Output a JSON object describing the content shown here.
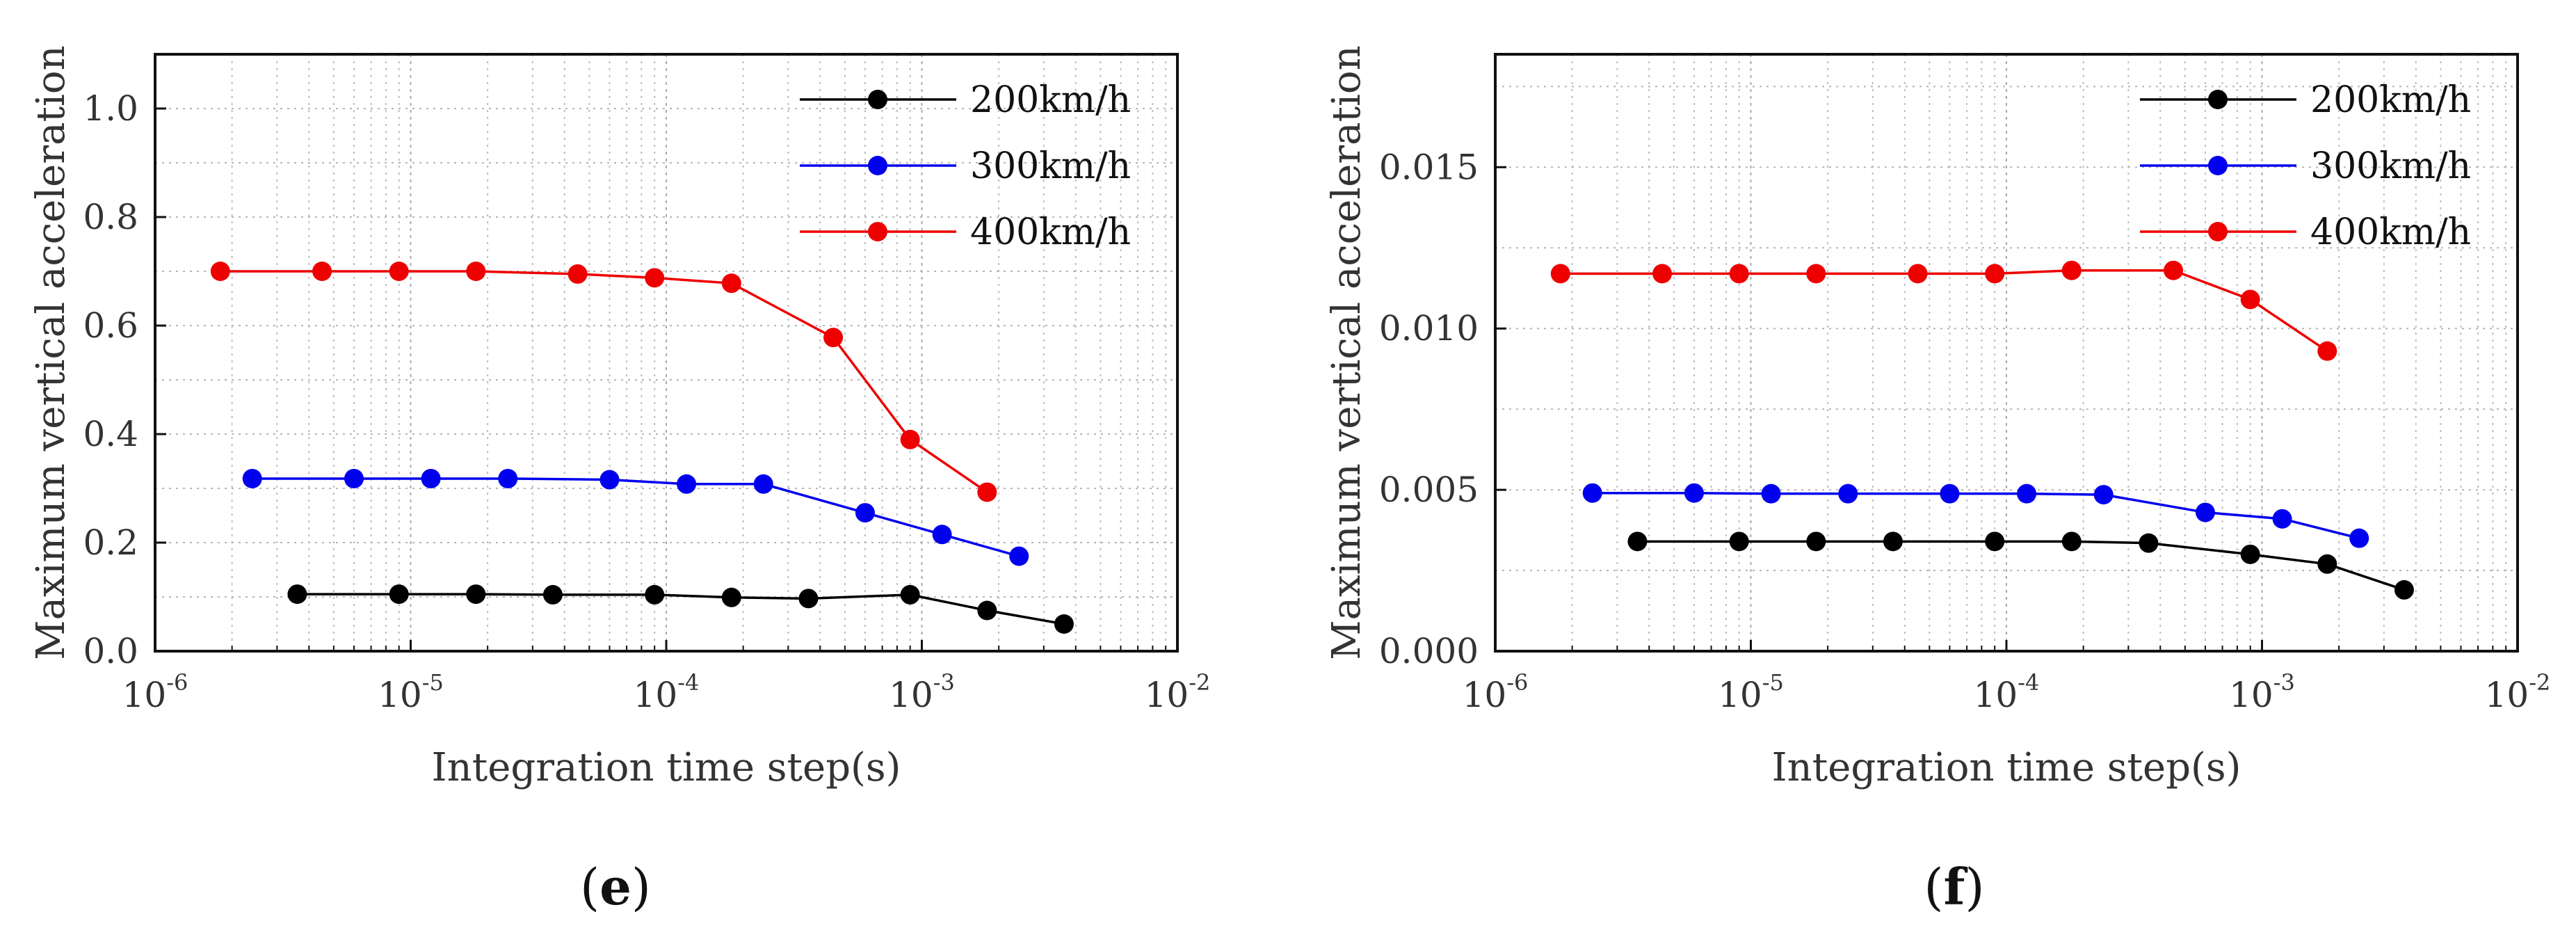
{
  "chart_data": [
    {
      "type": "line",
      "panel_label": "e",
      "xscale": "log",
      "xlim": [
        1e-06,
        0.01
      ],
      "ylim": [
        0,
        1.1
      ],
      "xlabel": "Integration time step(s)",
      "ylabel": "Maximum vertical acceleration",
      "x_ticks": [
        {
          "base": "10",
          "exp": "-6"
        },
        {
          "base": "10",
          "exp": "-5"
        },
        {
          "base": "10",
          "exp": "-4"
        },
        {
          "base": "10",
          "exp": "-3"
        },
        {
          "base": "10",
          "exp": "-2"
        }
      ],
      "y_ticks": [
        "0.0",
        "0.2",
        "0.4",
        "0.6",
        "0.8",
        "1.0"
      ],
      "grid": true,
      "legend_position": "top-right",
      "series": [
        {
          "name": "200km/h",
          "color": "#000000",
          "x": [
            3.6e-06,
            9e-06,
            1.8e-05,
            3.6e-05,
            9e-05,
            0.00018,
            0.00036,
            0.0009,
            0.0018,
            0.0036
          ],
          "y": [
            0.105,
            0.105,
            0.105,
            0.104,
            0.104,
            0.099,
            0.097,
            0.104,
            0.075,
            0.05
          ]
        },
        {
          "name": "300km/h",
          "color": "#0000ee",
          "x": [
            2.4e-06,
            6e-06,
            1.2e-05,
            2.4e-05,
            6e-05,
            0.00012,
            0.00024,
            0.0006,
            0.0012,
            0.0024
          ],
          "y": [
            0.318,
            0.318,
            0.318,
            0.318,
            0.316,
            0.308,
            0.308,
            0.255,
            0.215,
            0.175
          ]
        },
        {
          "name": "400km/h",
          "color": "#ee0000",
          "x": [
            1.8e-06,
            4.5e-06,
            9e-06,
            1.8e-05,
            4.5e-05,
            9e-05,
            0.00018,
            0.00045,
            0.0009,
            0.0018
          ],
          "y": [
            0.7,
            0.7,
            0.7,
            0.7,
            0.695,
            0.688,
            0.678,
            0.578,
            0.39,
            0.293
          ]
        }
      ]
    },
    {
      "type": "line",
      "panel_label": "f",
      "xscale": "log",
      "xlim": [
        1e-06,
        0.01
      ],
      "ylim": [
        0,
        0.0185
      ],
      "xlabel": "Integration time step(s)",
      "ylabel": "Maximum vertical acceleration",
      "x_ticks": [
        {
          "base": "10",
          "exp": "-6"
        },
        {
          "base": "10",
          "exp": "-5"
        },
        {
          "base": "10",
          "exp": "-4"
        },
        {
          "base": "10",
          "exp": "-3"
        },
        {
          "base": "10",
          "exp": "-2"
        }
      ],
      "y_ticks": [
        "0.000",
        "0.005",
        "0.010",
        "0.015"
      ],
      "grid": true,
      "legend_position": "top-right",
      "series": [
        {
          "name": "200km/h",
          "color": "#000000",
          "x": [
            3.6e-06,
            9e-06,
            1.8e-05,
            3.6e-05,
            9e-05,
            0.00018,
            0.00036,
            0.0009,
            0.0018,
            0.0036
          ],
          "y": [
            0.0034,
            0.0034,
            0.0034,
            0.0034,
            0.0034,
            0.0034,
            0.00335,
            0.003,
            0.0027,
            0.0019
          ]
        },
        {
          "name": "300km/h",
          "color": "#0000ee",
          "x": [
            2.4e-06,
            6e-06,
            1.2e-05,
            2.4e-05,
            6e-05,
            0.00012,
            0.00024,
            0.0006,
            0.0012,
            0.0024
          ],
          "y": [
            0.0049,
            0.0049,
            0.00488,
            0.00488,
            0.00488,
            0.00488,
            0.00485,
            0.0043,
            0.0041,
            0.0035
          ]
        },
        {
          "name": "400km/h",
          "color": "#ee0000",
          "x": [
            1.8e-06,
            4.5e-06,
            9e-06,
            1.8e-05,
            4.5e-05,
            9e-05,
            0.00018,
            0.00045,
            0.0009,
            0.0018
          ],
          "y": [
            0.0117,
            0.0117,
            0.0117,
            0.0117,
            0.0117,
            0.0117,
            0.0118,
            0.0118,
            0.0109,
            0.0093
          ]
        }
      ]
    }
  ]
}
